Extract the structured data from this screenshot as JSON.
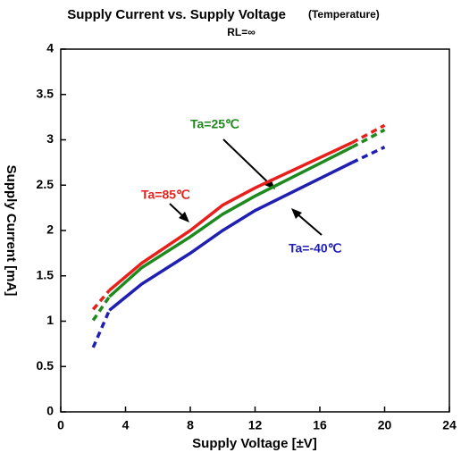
{
  "chart_data": {
    "type": "line",
    "title": "Supply Current vs. Supply Voltage",
    "title_note": "(Temperature)",
    "subtitle": "RL=∞",
    "xlabel": "Supply Voltage [±V]",
    "ylabel": "Supply Current [mA]",
    "x": [
      2,
      3,
      5,
      8,
      10,
      12,
      18,
      20
    ],
    "series": [
      {
        "name": "Ta=85℃",
        "color": "#e8201c",
        "values": [
          1.13,
          1.34,
          1.64,
          2.0,
          2.28,
          2.47,
          2.97,
          3.16
        ]
      },
      {
        "name": "Ta=25℃",
        "color": "#1e8a1e",
        "values": [
          1.01,
          1.27,
          1.59,
          1.93,
          2.18,
          2.38,
          2.92,
          3.11
        ]
      },
      {
        "name": "Ta=-40℃",
        "color": "#1f1fb4",
        "values": [
          0.71,
          1.12,
          1.41,
          1.75,
          2.0,
          2.22,
          2.75,
          2.92
        ]
      }
    ],
    "xlim": [
      0,
      24
    ],
    "xticks": [
      0,
      4,
      8,
      12,
      16,
      20,
      24
    ],
    "ylim": [
      0,
      4
    ],
    "yticks": [
      0,
      0.5,
      1,
      1.5,
      2,
      2.5,
      3,
      3.5,
      4
    ],
    "grid": false
  }
}
